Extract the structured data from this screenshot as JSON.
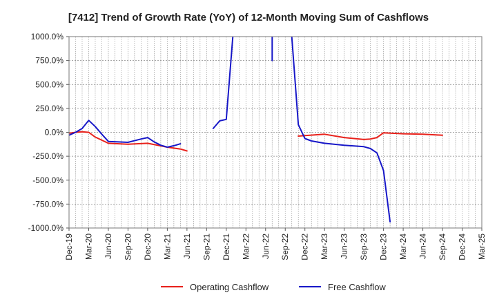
{
  "chart_data": {
    "type": "line",
    "title": "[7412]  Trend of Growth Rate (YoY) of 12-Month Moving Sum of Cashflows",
    "xlabel": "",
    "ylabel": "",
    "ylim": [
      -1000,
      1000
    ],
    "xlim": [
      "2019-12",
      "2025-03"
    ],
    "grid": true,
    "legend_position": "bottom",
    "y_ticks": [
      "1000.0%",
      "750.0%",
      "500.0%",
      "250.0%",
      "0.0%",
      "-250.0%",
      "-500.0%",
      "-750.0%",
      "-1000.0%"
    ],
    "x_ticks": [
      "Dec-19",
      "Mar-20",
      "Jun-20",
      "Sep-20",
      "Dec-20",
      "Mar-21",
      "Jun-21",
      "Sep-21",
      "Dec-21",
      "Mar-22",
      "Jun-22",
      "Sep-22",
      "Dec-22",
      "Mar-23",
      "Jun-23",
      "Sep-23",
      "Dec-23",
      "Mar-24",
      "Jun-24",
      "Sep-24",
      "Dec-24",
      "Mar-25"
    ],
    "series": [
      {
        "name": "Operating Cashflow",
        "color": "#e8201a",
        "points": [
          [
            "2019-12",
            -10
          ],
          [
            "2020-01",
            0
          ],
          [
            "2020-02",
            5
          ],
          [
            "2020-03",
            0
          ],
          [
            "2020-04",
            -50
          ],
          [
            "2020-06",
            -115
          ],
          [
            "2020-09",
            -125
          ],
          [
            "2020-12",
            -115
          ],
          [
            "2021-03",
            -155
          ],
          [
            "2021-04",
            -165
          ],
          [
            "2021-05",
            -175
          ],
          [
            "2021-06",
            -195
          ],
          null,
          [
            "2022-11",
            -40
          ],
          [
            "2022-12",
            -35
          ],
          [
            "2023-03",
            -20
          ],
          [
            "2023-06",
            -55
          ],
          [
            "2023-09",
            -75
          ],
          [
            "2023-10",
            -70
          ],
          [
            "2023-11",
            -55
          ],
          [
            "2023-12",
            -5
          ],
          [
            "2024-03",
            -15
          ],
          [
            "2024-06",
            -20
          ],
          [
            "2024-09",
            -30
          ]
        ]
      },
      {
        "name": "Free Cashflow",
        "color": "#1717c8",
        "points": [
          [
            "2019-12",
            -30
          ],
          [
            "2020-01",
            0
          ],
          [
            "2020-02",
            40
          ],
          [
            "2020-03",
            125
          ],
          [
            "2020-04",
            60
          ],
          [
            "2020-05",
            -20
          ],
          [
            "2020-06",
            -95
          ],
          [
            "2020-09",
            -105
          ],
          [
            "2020-11",
            -70
          ],
          [
            "2020-12",
            -55
          ],
          [
            "2021-01",
            -100
          ],
          [
            "2021-02",
            -135
          ],
          [
            "2021-03",
            -155
          ],
          [
            "2021-04",
            -140
          ],
          [
            "2021-05",
            -120
          ],
          null,
          [
            "2021-10",
            40
          ],
          [
            "2021-11",
            120
          ],
          [
            "2021-12",
            135
          ],
          [
            "2022-01",
            1000
          ],
          null,
          [
            "2022-07",
            750
          ],
          [
            "2022-07",
            1000
          ],
          null,
          [
            "2022-10",
            1000
          ],
          [
            "2022-11",
            80
          ],
          [
            "2022-12",
            -65
          ],
          [
            "2023-01",
            -90
          ],
          [
            "2023-03",
            -115
          ],
          [
            "2023-06",
            -135
          ],
          [
            "2023-09",
            -150
          ],
          [
            "2023-10",
            -170
          ],
          [
            "2023-11",
            -215
          ],
          [
            "2023-12",
            -400
          ],
          [
            "2024-01",
            -935
          ]
        ]
      }
    ]
  }
}
